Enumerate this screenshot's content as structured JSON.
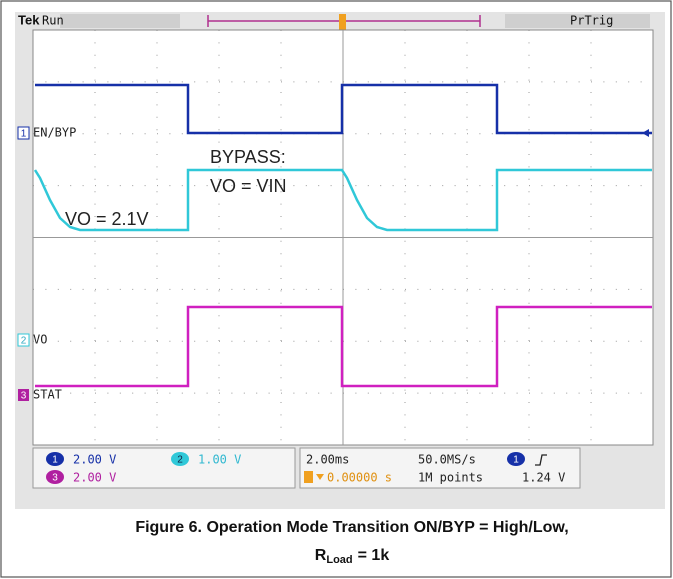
{
  "header": {
    "brand": "Tek",
    "status": "Run",
    "trigger_state": "PrTrig"
  },
  "channels": [
    {
      "number": "1",
      "label": "EN/BYP"
    },
    {
      "number": "2",
      "label": "VO"
    },
    {
      "number": "3",
      "label": "STAT"
    }
  ],
  "annotations": [
    "BYPASS:",
    "VO = VIN",
    "VO = 2.1V"
  ],
  "readouts": {
    "ch1_scale": "2.00 V",
    "ch2_scale": "1.00 V",
    "ch3_scale": "2.00 V",
    "timebase": "2.00ms",
    "sample_rate": "50.0MS/s",
    "trigger_position": "0.00000 s",
    "record_length": "1M points",
    "trigger_level": "1.24 V"
  },
  "caption": {
    "line1": "Figure 6. Operation Mode Transition ON/BYP = High/Low,",
    "symbol": "R",
    "subscript": "Load",
    "value": "= 1k"
  }
}
